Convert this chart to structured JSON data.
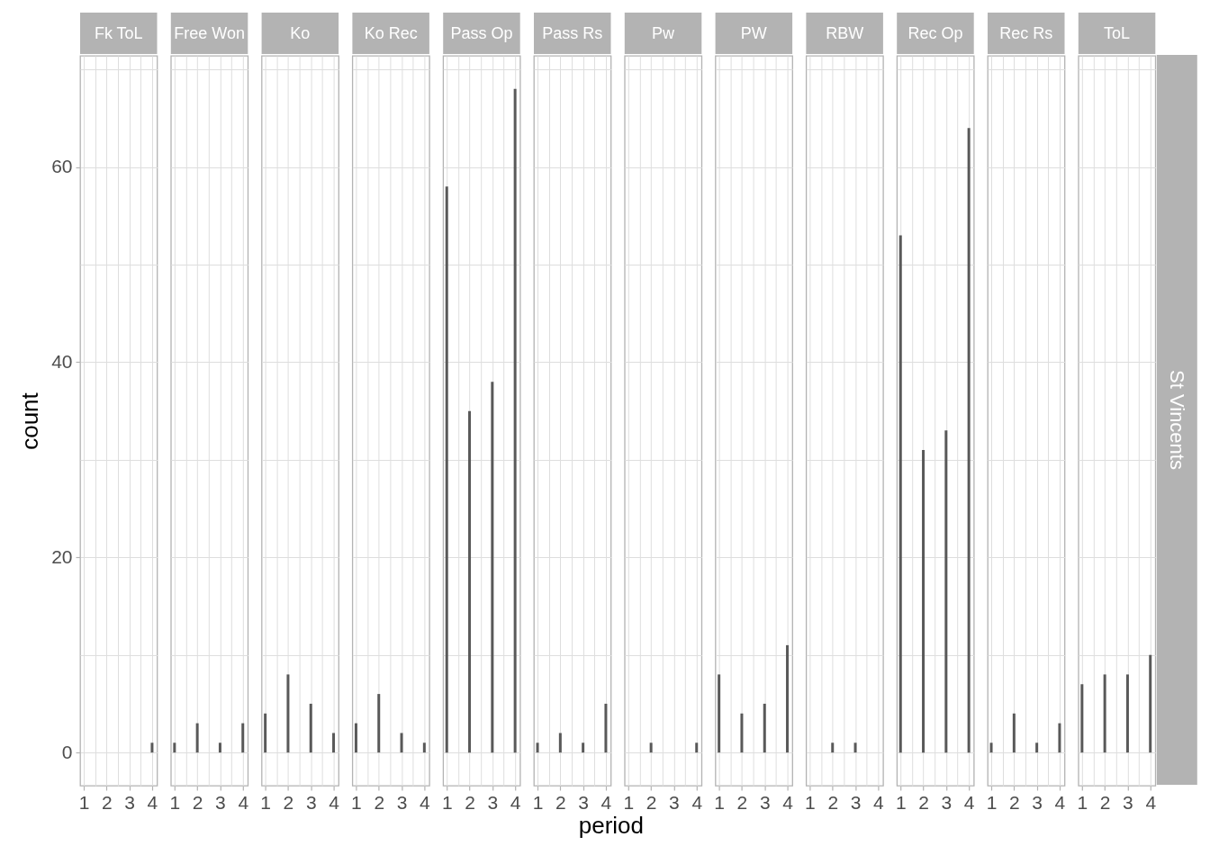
{
  "chart_data": [
    {
      "type": "bar",
      "title": "Fk ToL",
      "x": [
        4
      ],
      "values": [
        1
      ],
      "color": "#595959",
      "ylabel": "count",
      "xlim": [
        0.84,
        4.22
      ],
      "ylim": [
        -3.4,
        71.4
      ],
      "xticks": [
        1,
        {
          "value": 1.5,
          "label": null
        },
        2,
        {
          "value": 2.5,
          "label": null
        },
        3,
        {
          "value": 3.5,
          "label": null
        },
        4
      ],
      "yticks": [
        0,
        {
          "value": 10,
          "label": null
        },
        20,
        {
          "value": 30,
          "label": null
        },
        40,
        {
          "value": 50,
          "label": null
        },
        60,
        {
          "value": 70,
          "label": null
        }
      ],
      "grid": true
    },
    {
      "type": "bar",
      "title": "Free Won",
      "x": [
        1,
        2,
        3,
        4
      ],
      "values": [
        1,
        3,
        1,
        3
      ],
      "color": "#595959",
      "xlim": [
        0.84,
        4.22
      ],
      "ylim": [
        -3.4,
        71.4
      ],
      "xticks": [
        1,
        {
          "value": 1.5,
          "label": null
        },
        2,
        {
          "value": 2.5,
          "label": null
        },
        3,
        {
          "value": 3.5,
          "label": null
        },
        4
      ],
      "yticks": [
        0,
        {
          "value": 10,
          "label": null
        },
        20,
        {
          "value": 30,
          "label": null
        },
        40,
        {
          "value": 50,
          "label": null
        },
        60,
        {
          "value": 70,
          "label": null
        }
      ],
      "grid": true,
      "tick_labels": "x"
    },
    {
      "type": "bar",
      "title": "Ko",
      "x": [
        1,
        2,
        3,
        4
      ],
      "values": [
        4,
        8,
        5,
        2
      ],
      "color": "#595959",
      "xlim": [
        0.84,
        4.22
      ],
      "ylim": [
        -3.4,
        71.4
      ],
      "xticks": [
        1,
        {
          "value": 1.5,
          "label": null
        },
        2,
        {
          "value": 2.5,
          "label": null
        },
        3,
        {
          "value": 3.5,
          "label": null
        },
        4
      ],
      "yticks": [
        0,
        {
          "value": 10,
          "label": null
        },
        20,
        {
          "value": 30,
          "label": null
        },
        40,
        {
          "value": 50,
          "label": null
        },
        60,
        {
          "value": 70,
          "label": null
        }
      ],
      "grid": true,
      "tick_labels": "x"
    },
    {
      "type": "bar",
      "title": "Ko Rec",
      "x": [
        1,
        2,
        3,
        4
      ],
      "values": [
        3,
        6,
        2,
        1
      ],
      "color": "#595959",
      "xlim": [
        0.84,
        4.22
      ],
      "ylim": [
        -3.4,
        71.4
      ],
      "xticks": [
        1,
        {
          "value": 1.5,
          "label": null
        },
        2,
        {
          "value": 2.5,
          "label": null
        },
        3,
        {
          "value": 3.5,
          "label": null
        },
        4
      ],
      "yticks": [
        0,
        {
          "value": 10,
          "label": null
        },
        20,
        {
          "value": 30,
          "label": null
        },
        40,
        {
          "value": 50,
          "label": null
        },
        60,
        {
          "value": 70,
          "label": null
        }
      ],
      "grid": true,
      "tick_labels": "x"
    },
    {
      "type": "bar",
      "title": "Pass Op",
      "x": [
        1,
        2,
        3,
        4
      ],
      "values": [
        58,
        35,
        38,
        68
      ],
      "color": "#595959",
      "xlim": [
        0.84,
        4.22
      ],
      "ylim": [
        -3.4,
        71.4
      ],
      "xticks": [
        1,
        {
          "value": 1.5,
          "label": null
        },
        2,
        {
          "value": 2.5,
          "label": null
        },
        3,
        {
          "value": 3.5,
          "label": null
        },
        4
      ],
      "yticks": [
        0,
        {
          "value": 10,
          "label": null
        },
        20,
        {
          "value": 30,
          "label": null
        },
        40,
        {
          "value": 50,
          "label": null
        },
        60,
        {
          "value": 70,
          "label": null
        }
      ],
      "grid": true,
      "tick_labels": "x"
    },
    {
      "type": "bar",
      "title": "Pass Rs",
      "x": [
        1,
        2,
        3,
        4
      ],
      "values": [
        1,
        2,
        1,
        5
      ],
      "color": "#595959",
      "xlabel": "period",
      "xlim": [
        0.84,
        4.22
      ],
      "ylim": [
        -3.4,
        71.4
      ],
      "xticks": [
        1,
        {
          "value": 1.5,
          "label": null
        },
        2,
        {
          "value": 2.5,
          "label": null
        },
        3,
        {
          "value": 3.5,
          "label": null
        },
        4
      ],
      "yticks": [
        0,
        {
          "value": 10,
          "label": null
        },
        20,
        {
          "value": 30,
          "label": null
        },
        40,
        {
          "value": 50,
          "label": null
        },
        60,
        {
          "value": 70,
          "label": null
        }
      ],
      "grid": true,
      "tick_labels": "x"
    },
    {
      "type": "bar",
      "title": "Pw",
      "x": [
        2,
        4
      ],
      "values": [
        1,
        1
      ],
      "color": "#595959",
      "xlim": [
        0.84,
        4.22
      ],
      "ylim": [
        -3.4,
        71.4
      ],
      "xticks": [
        1,
        {
          "value": 1.5,
          "label": null
        },
        2,
        {
          "value": 2.5,
          "label": null
        },
        3,
        {
          "value": 3.5,
          "label": null
        },
        4
      ],
      "yticks": [
        0,
        {
          "value": 10,
          "label": null
        },
        20,
        {
          "value": 30,
          "label": null
        },
        40,
        {
          "value": 50,
          "label": null
        },
        60,
        {
          "value": 70,
          "label": null
        }
      ],
      "grid": true,
      "tick_labels": "x"
    },
    {
      "type": "bar",
      "title": "PW",
      "x": [
        1,
        2,
        3,
        4
      ],
      "values": [
        8,
        4,
        5,
        11
      ],
      "color": "#595959",
      "xlim": [
        0.84,
        4.22
      ],
      "ylim": [
        -3.4,
        71.4
      ],
      "xticks": [
        1,
        {
          "value": 1.5,
          "label": null
        },
        2,
        {
          "value": 2.5,
          "label": null
        },
        3,
        {
          "value": 3.5,
          "label": null
        },
        4
      ],
      "yticks": [
        0,
        {
          "value": 10,
          "label": null
        },
        20,
        {
          "value": 30,
          "label": null
        },
        40,
        {
          "value": 50,
          "label": null
        },
        60,
        {
          "value": 70,
          "label": null
        }
      ],
      "grid": true,
      "tick_labels": "x"
    },
    {
      "type": "bar",
      "title": "RBW",
      "x": [
        2,
        3
      ],
      "values": [
        1,
        1
      ],
      "color": "#595959",
      "xlim": [
        0.84,
        4.22
      ],
      "ylim": [
        -3.4,
        71.4
      ],
      "xticks": [
        1,
        {
          "value": 1.5,
          "label": null
        },
        2,
        {
          "value": 2.5,
          "label": null
        },
        3,
        {
          "value": 3.5,
          "label": null
        },
        4
      ],
      "yticks": [
        0,
        {
          "value": 10,
          "label": null
        },
        20,
        {
          "value": 30,
          "label": null
        },
        40,
        {
          "value": 50,
          "label": null
        },
        60,
        {
          "value": 70,
          "label": null
        }
      ],
      "grid": true,
      "tick_labels": "x"
    },
    {
      "type": "bar",
      "title": "Rec Op",
      "x": [
        1,
        2,
        3,
        4
      ],
      "values": [
        53,
        31,
        33,
        64
      ],
      "color": "#595959",
      "xlim": [
        0.84,
        4.22
      ],
      "ylim": [
        -3.4,
        71.4
      ],
      "xticks": [
        1,
        {
          "value": 1.5,
          "label": null
        },
        2,
        {
          "value": 2.5,
          "label": null
        },
        3,
        {
          "value": 3.5,
          "label": null
        },
        4
      ],
      "yticks": [
        0,
        {
          "value": 10,
          "label": null
        },
        20,
        {
          "value": 30,
          "label": null
        },
        40,
        {
          "value": 50,
          "label": null
        },
        60,
        {
          "value": 70,
          "label": null
        }
      ],
      "grid": true,
      "tick_labels": "x"
    },
    {
      "type": "bar",
      "title": "Rec Rs",
      "x": [
        1,
        2,
        3,
        4
      ],
      "values": [
        1,
        4,
        1,
        3
      ],
      "color": "#595959",
      "xlim": [
        0.84,
        4.22
      ],
      "ylim": [
        -3.4,
        71.4
      ],
      "xticks": [
        1,
        {
          "value": 1.5,
          "label": null
        },
        2,
        {
          "value": 2.5,
          "label": null
        },
        3,
        {
          "value": 3.5,
          "label": null
        },
        4
      ],
      "yticks": [
        0,
        {
          "value": 10,
          "label": null
        },
        20,
        {
          "value": 30,
          "label": null
        },
        40,
        {
          "value": 50,
          "label": null
        },
        60,
        {
          "value": 70,
          "label": null
        }
      ],
      "grid": true,
      "tick_labels": "x"
    },
    {
      "type": "bar",
      "title": "ToL",
      "x": [
        1,
        2,
        3,
        4
      ],
      "values": [
        7,
        8,
        8,
        10
      ],
      "color": "#595959",
      "xlim": [
        0.84,
        4.22
      ],
      "ylim": [
        -3.4,
        71.4
      ],
      "xticks": [
        1,
        {
          "value": 1.5,
          "label": null
        },
        2,
        {
          "value": 2.5,
          "label": null
        },
        3,
        {
          "value": 3.5,
          "label": null
        },
        4
      ],
      "yticks": [
        0,
        {
          "value": 10,
          "label": null
        },
        20,
        {
          "value": 30,
          "label": null
        },
        40,
        {
          "value": 50,
          "label": null
        },
        60,
        {
          "value": 70,
          "label": null
        }
      ],
      "grid": true,
      "tick_labels": "x",
      "annotations": [
        "St Vincents"
      ]
    }
  ]
}
